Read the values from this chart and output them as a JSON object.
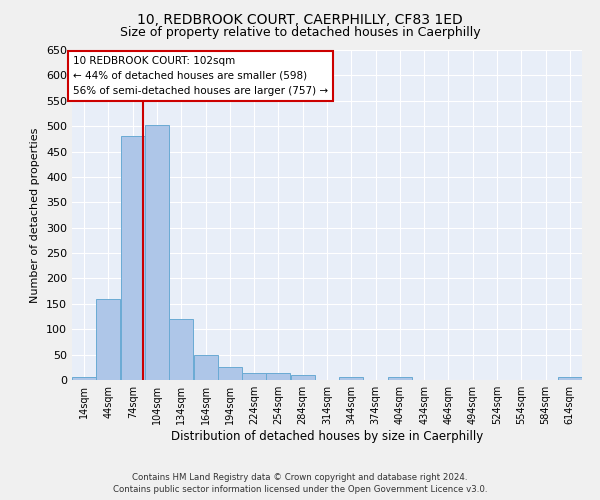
{
  "title": "10, REDBROOK COURT, CAERPHILLY, CF83 1ED",
  "subtitle": "Size of property relative to detached houses in Caerphilly",
  "xlabel": "Distribution of detached houses by size in Caerphilly",
  "ylabel": "Number of detached properties",
  "bar_color": "#aec6e8",
  "bar_edge_color": "#6aaad4",
  "background_color": "#e8eef8",
  "grid_color": "#ffffff",
  "fig_background": "#f0f0f0",
  "vline_x": 102,
  "vline_color": "#cc0000",
  "annotation_text": "10 REDBROOK COURT: 102sqm\n← 44% of detached houses are smaller (598)\n56% of semi-detached houses are larger (757) →",
  "annotation_box_color": "#ffffff",
  "annotation_box_edge": "#cc0000",
  "footer_line1": "Contains HM Land Registry data © Crown copyright and database right 2024.",
  "footer_line2": "Contains public sector information licensed under the Open Government Licence v3.0.",
  "bins": [
    14,
    44,
    74,
    104,
    134,
    164,
    194,
    224,
    254,
    284,
    314,
    344,
    374,
    404,
    434,
    464,
    494,
    524,
    554,
    584,
    614
  ],
  "bin_labels": [
    "14sqm",
    "44sqm",
    "74sqm",
    "104sqm",
    "134sqm",
    "164sqm",
    "194sqm",
    "224sqm",
    "254sqm",
    "284sqm",
    "314sqm",
    "344sqm",
    "374sqm",
    "404sqm",
    "434sqm",
    "464sqm",
    "494sqm",
    "524sqm",
    "554sqm",
    "584sqm",
    "614sqm"
  ],
  "counts": [
    5,
    160,
    480,
    503,
    120,
    50,
    25,
    14,
    13,
    10,
    0,
    5,
    0,
    5,
    0,
    0,
    0,
    0,
    0,
    0,
    5
  ],
  "ylim": [
    0,
    650
  ],
  "yticks": [
    0,
    50,
    100,
    150,
    200,
    250,
    300,
    350,
    400,
    450,
    500,
    550,
    600,
    650
  ]
}
